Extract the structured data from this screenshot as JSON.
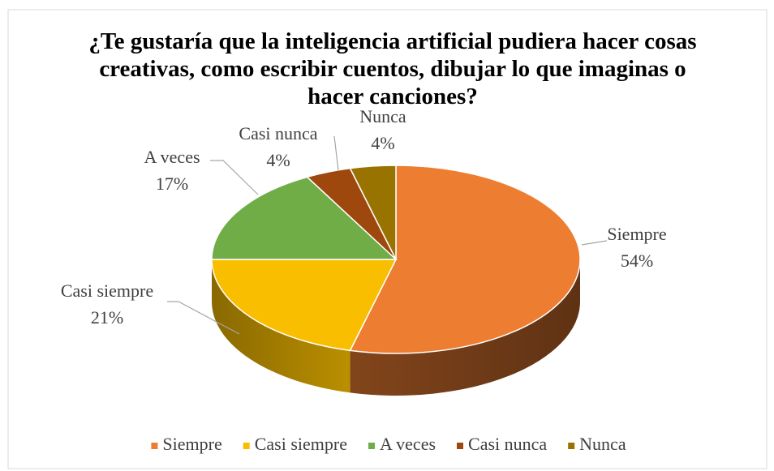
{
  "chart_data": {
    "type": "pie",
    "title": "¿Te gustaría que la inteligencia artificial pudiera hacer cosas creativas, como escribir cuentos, dibujar lo que imaginas o hacer canciones?",
    "categories": [
      "Siempre",
      "Casi siempre",
      "A veces",
      "Casi nunca",
      "Nunca"
    ],
    "values": [
      54,
      21,
      17,
      4,
      4
    ],
    "value_labels": [
      "54%",
      "21%",
      "17%",
      "4%",
      "4%"
    ],
    "colors": [
      "#ED7D31",
      "#F9BE00",
      "#70AD47",
      "#9E480E",
      "#997300"
    ],
    "legend": "bottom"
  }
}
